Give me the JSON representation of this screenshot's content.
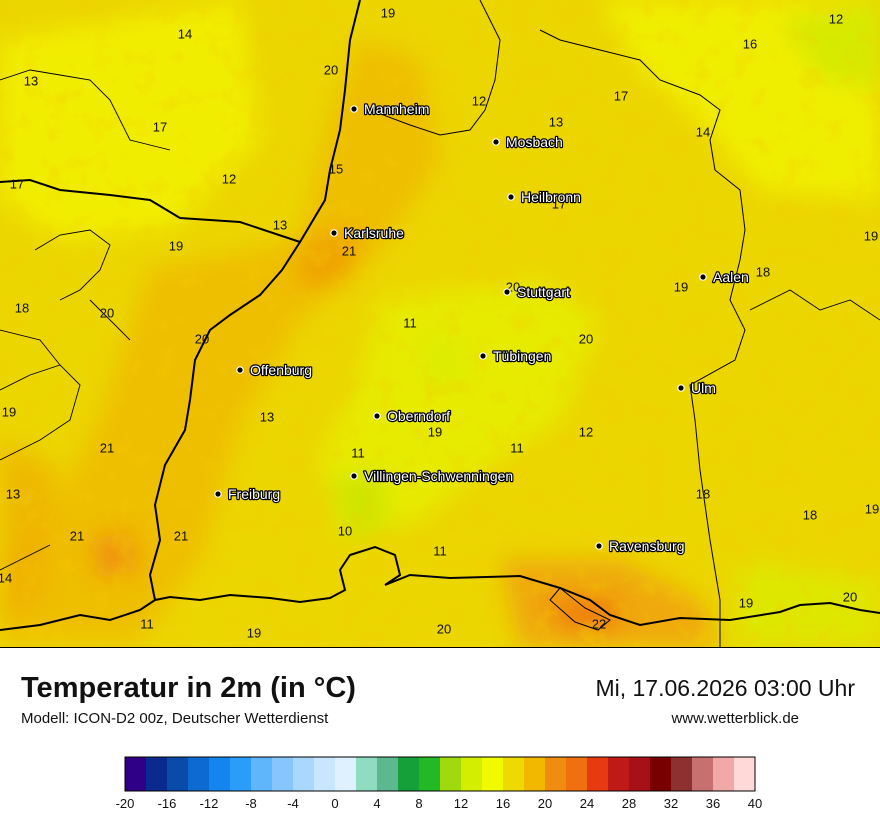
{
  "header": {
    "title": "Temperatur in 2m (in °C)",
    "model": "Modell: ICON-D2 00z, Deutscher Wetterdienst",
    "datetime": "Mi, 17.06.2026 03:00 Uhr",
    "website": "www.wetterblick.de"
  },
  "cities": [
    {
      "name": "Mannheim"
    },
    {
      "name": "Mosbach"
    },
    {
      "name": "Heilbronn"
    },
    {
      "name": "Karlsruhe"
    },
    {
      "name": "Stuttgart"
    },
    {
      "name": "Aalen"
    },
    {
      "name": "Tübingen"
    },
    {
      "name": "Offenburg"
    },
    {
      "name": "Ulm"
    },
    {
      "name": "Oberndorf"
    },
    {
      "name": "Villingen-Schwenningen"
    },
    {
      "name": "Freiburg"
    },
    {
      "name": "Ravensburg"
    }
  ],
  "values": [
    "19",
    "12",
    "14",
    "16",
    "13",
    "20",
    "12",
    "13",
    "17",
    "17",
    "14",
    "17",
    "15",
    "12",
    "17",
    "19",
    "13",
    "19",
    "21",
    "20",
    "19",
    "18",
    "18",
    "20",
    "11",
    "20",
    "20",
    "19",
    "13",
    "19",
    "21",
    "12",
    "11",
    "11",
    "13",
    "18",
    "18",
    "19",
    "21",
    "21",
    "10",
    "11",
    "14",
    "11",
    "19",
    "20",
    "22",
    "19",
    "20"
  ],
  "legend": {
    "unit": "°C",
    "ticks": [
      "-20",
      "-16",
      "-12",
      "-8",
      "-4",
      "0",
      "4",
      "8",
      "12",
      "16",
      "20",
      "24",
      "28",
      "32",
      "36",
      "40"
    ],
    "colors": [
      "#2f0087",
      "#0b2a8f",
      "#0a4aa8",
      "#0c6ad0",
      "#1484ee",
      "#2b9df8",
      "#5fb6fb",
      "#86c6fc",
      "#a9d7fd",
      "#c8e6fe",
      "#dff0fe",
      "#8fdcc0",
      "#5cb88e",
      "#16a03a",
      "#22b826",
      "#9fda0f",
      "#d4ee00",
      "#f2fa00",
      "#eed900",
      "#f2b800",
      "#f08c10",
      "#f07010",
      "#e83a10",
      "#c01a18",
      "#a81018",
      "#780000",
      "#8c3030",
      "#c87070",
      "#f0a8a8",
      "#ffd8d8"
    ]
  }
}
